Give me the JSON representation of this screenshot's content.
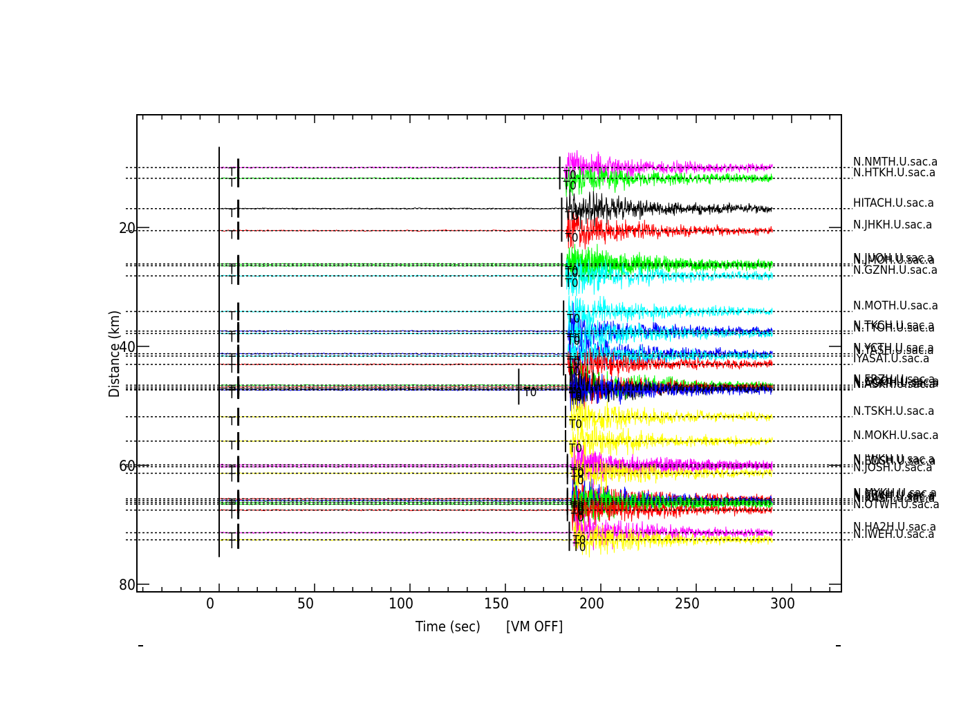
{
  "chart_data": {
    "type": "line",
    "xlabel": "Time (sec)",
    "xlabel_suffix": "[VM OFF]",
    "ylabel": "Distance (km)",
    "xlim": [
      -42,
      327
    ],
    "ylim": [
      80,
      2
    ],
    "x_ticks": [
      0,
      50,
      100,
      150,
      200,
      250,
      300
    ],
    "y_ticks": [
      20,
      40,
      60,
      80
    ],
    "record_start": 0,
    "record_end": 290,
    "origin_marker_x": 0,
    "t_marker_x": 10,
    "t_marker_label": "T",
    "arrival_label": "T0",
    "stray_marker": {
      "x": 157,
      "y": 47,
      "label": "T0"
    },
    "series": [
      {
        "name": "N.NMTH.U.sac.a",
        "distance": 9.7,
        "arrival": 181,
        "color": "#ff00ff"
      },
      {
        "name": "N.HTKH.U.sac.a",
        "distance": 11.5,
        "arrival": 181,
        "color": "#00ff00"
      },
      {
        "name": "HITACH.U.sac.a",
        "distance": 16.6,
        "arrival": 182,
        "color": "#000000"
      },
      {
        "name": "N.JHKH.U.sac.a",
        "distance": 20.3,
        "arrival": 182,
        "color": "#ff0000"
      },
      {
        "name": "N.JUOH.U.sac.a",
        "distance": 25.9,
        "arrival": 182,
        "color": "#00ff00"
      },
      {
        "name": "N.JMOH.U.sac.a",
        "distance": 26.2,
        "arrival": 182,
        "color": "#00ff00"
      },
      {
        "name": "N.GZNH.U.sac.a",
        "distance": 27.9,
        "arrival": 182,
        "color": "#00ffff"
      },
      {
        "name": "N.MOTH.U.sac.a",
        "distance": 33.9,
        "arrival": 183,
        "color": "#00ffff"
      },
      {
        "name": "N.TKCH.U.sac.a",
        "distance": 37.2,
        "arrival": 183,
        "color": "#0000ff"
      },
      {
        "name": "N.TYOH.U.sac.a",
        "distance": 37.6,
        "arrival": 183,
        "color": "#00ffff"
      },
      {
        "name": "N.YCTH.U.sac.a",
        "distance": 41.0,
        "arrival": 183,
        "color": "#0000ff"
      },
      {
        "name": "N.YASH.U.sac.a",
        "distance": 41.4,
        "arrival": 183,
        "color": "#00ffff"
      },
      {
        "name": "IYASAT.U.sac.a",
        "distance": 42.8,
        "arrival": 183,
        "color": "#ff0000"
      },
      {
        "name": "N.FRZH.U.sac.a",
        "distance": 46.3,
        "arrival": 184,
        "color": "#00ff00"
      },
      {
        "name": "N.GOOH.U.sac.a",
        "distance": 46.6,
        "arrival": 184,
        "color": "#ff0000"
      },
      {
        "name": "N.AGMH.U.sac.a",
        "distance": 46.9,
        "arrival": 184,
        "color": "#000000"
      },
      {
        "name": "N.ASKH.U.sac.a",
        "distance": 47.1,
        "arrival": 184,
        "color": "#0000ff"
      },
      {
        "name": "N.TSKH.U.sac.a",
        "distance": 51.6,
        "arrival": 184,
        "color": "#ffff00"
      },
      {
        "name": "N.MOKH.U.sac.a",
        "distance": 55.7,
        "arrival": 184,
        "color": "#ffff00"
      },
      {
        "name": "N.IWKH.U.sac.a",
        "distance": 59.7,
        "arrival": 185,
        "color": "#ff00ff"
      },
      {
        "name": "N.EDSH.U.sac.a",
        "distance": 60.0,
        "arrival": 185,
        "color": "#ff00ff"
      },
      {
        "name": "N.JOSH.U.sac.a",
        "distance": 61.1,
        "arrival": 185,
        "color": "#ffff00"
      },
      {
        "name": "N.MYKH.U.sac.a",
        "distance": 65.4,
        "arrival": 185,
        "color": "#ff0000"
      },
      {
        "name": "N.SBKH.U.sac.a",
        "distance": 65.7,
        "arrival": 185,
        "color": "#0000ff"
      },
      {
        "name": "N.SIWH.U.sac.a",
        "distance": 66.0,
        "arrival": 185,
        "color": "#00ff00"
      },
      {
        "name": "N.KASH.U.sac.a",
        "distance": 66.3,
        "arrival": 185,
        "color": "#00ff00"
      },
      {
        "name": "N.OTWH.U.sac.a",
        "distance": 67.3,
        "arrival": 185,
        "color": "#ff0000"
      },
      {
        "name": "N.HA2H.U.sac.a",
        "distance": 71.1,
        "arrival": 186,
        "color": "#ff00ff"
      },
      {
        "name": "N.IWEH.U.sac.a",
        "distance": 72.3,
        "arrival": 186,
        "color": "#ffff00"
      }
    ]
  }
}
